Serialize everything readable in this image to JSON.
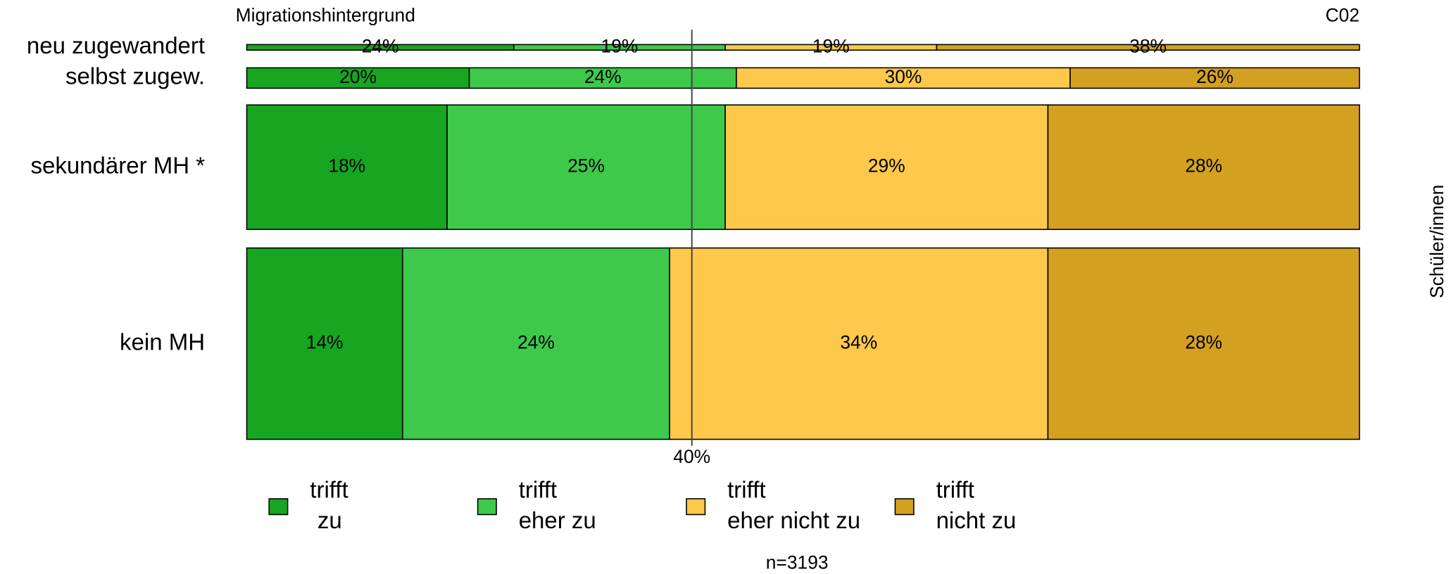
{
  "chart_data": {
    "type": "stacked_bar_horizontal",
    "subtitle": "Migrationshintergrund",
    "code": "C02",
    "right_label": "Schüler/innen",
    "note": "n=3193",
    "categories": [
      "neu zugewandert",
      "selbst zugew.",
      "sekundärer MH *",
      "kein MH"
    ],
    "xlim": [
      0,
      100
    ],
    "reference_line": {
      "value": 40,
      "label": "40%"
    },
    "series": [
      {
        "name": "trifft\nzu",
        "color": "#16a622",
        "values": [
          24,
          20,
          18,
          14
        ],
        "value_labels": [
          "24%",
          "20%",
          "18%",
          "14%"
        ]
      },
      {
        "name": "trifft\neher zu",
        "color": "#3ec94a",
        "values": [
          19,
          24,
          25,
          24
        ],
        "value_labels": [
          "19%",
          "24%",
          "25%",
          "24%"
        ]
      },
      {
        "name": "trifft\neher nicht zu",
        "color": "#fec84a",
        "values": [
          19,
          30,
          29,
          34
        ],
        "value_labels": [
          "19%",
          "30%",
          "29%",
          "34%"
        ]
      },
      {
        "name": "trifft\nnicht zu",
        "color": "#d4a020",
        "values": [
          38,
          26,
          28,
          28
        ],
        "value_labels": [
          "38%",
          "26%",
          "28%",
          "28%"
        ]
      }
    ]
  }
}
